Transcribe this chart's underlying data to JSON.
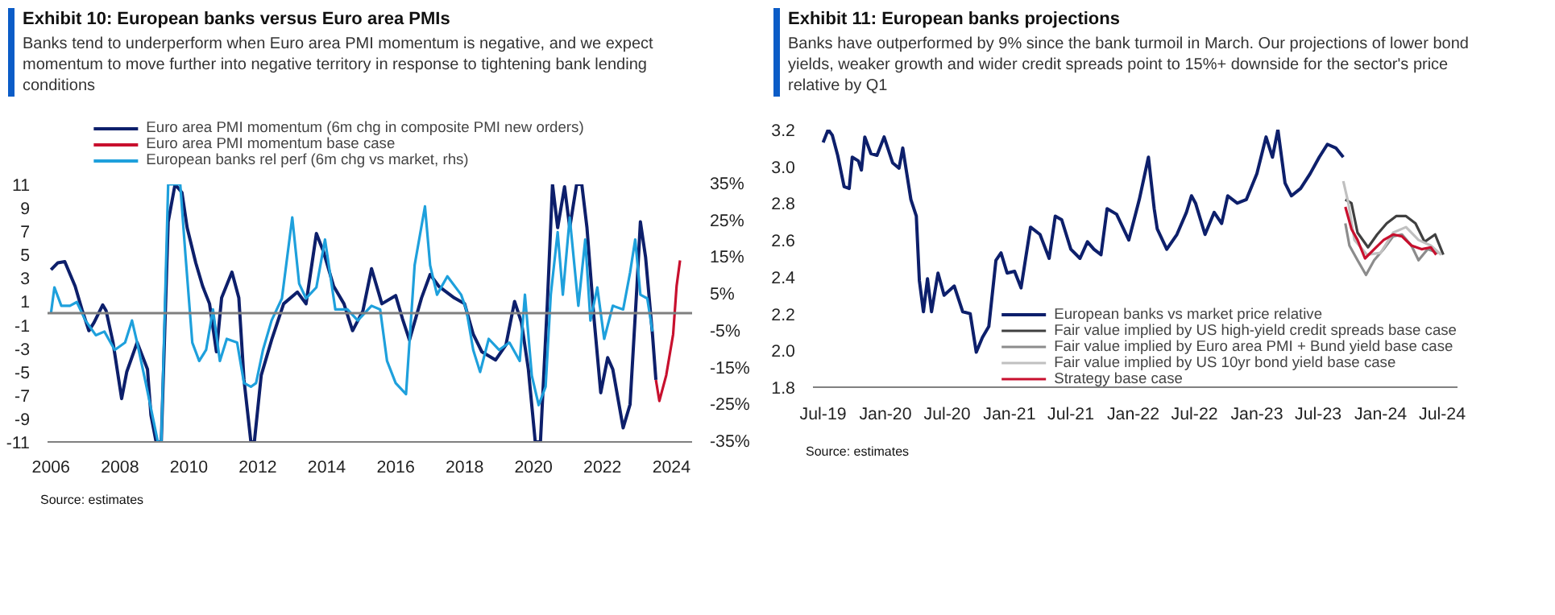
{
  "chart_data": [
    {
      "type": "line",
      "title": "Exhibit 10: European banks versus Euro area PMIs",
      "subtitle": "Banks tend to underperform when Euro area PMI momentum is negative, and we expect momentum to move further into negative territory in response to tightening bank lending conditions",
      "xlim": [
        2005.9,
        2024.6
      ],
      "xticks": [
        2006,
        2008,
        2010,
        2012,
        2014,
        2016,
        2018,
        2020,
        2022,
        2024
      ],
      "ylim": [
        -11,
        11
      ],
      "yticks": [
        -11,
        -9,
        -7,
        -5,
        -3,
        -1,
        1,
        3,
        5,
        7,
        9,
        11
      ],
      "y2lim": [
        -35,
        35
      ],
      "y2ticks": [
        {
          "value": -35,
          "label": "-35%"
        },
        {
          "value": -25,
          "label": "-25%"
        },
        {
          "value": -15,
          "label": "-15%"
        },
        {
          "value": -5,
          "label": "-5%"
        },
        {
          "value": 5,
          "label": "5%"
        },
        {
          "value": 15,
          "label": "15%"
        },
        {
          "value": 25,
          "label": "25%"
        },
        {
          "value": 35,
          "label": "35%"
        }
      ],
      "grid": false,
      "legend": "top",
      "ref_lines": [
        {
          "axis": "y",
          "value": 0,
          "color": "#808080"
        }
      ],
      "annotations": [
        "Source: estimates"
      ],
      "series": [
        {
          "name": "Euro area PMI momentum (6m chg in composite PMI new orders)",
          "color": "#0d1f6b",
          "x": [
            2006.0,
            2006.2,
            2006.4,
            2006.7,
            2006.9,
            2007.1,
            2007.25,
            2007.5,
            2007.6,
            2007.8,
            2008.05,
            2008.2,
            2008.5,
            2008.8,
            2008.9,
            2009.05,
            2009.2,
            2009.4,
            2009.6,
            2009.8,
            2009.95,
            2010.2,
            2010.4,
            2010.6,
            2010.8,
            2010.95,
            2011.25,
            2011.45,
            2011.6,
            2011.8,
            2011.9,
            2012.1,
            2012.4,
            2012.75,
            2013.15,
            2013.4,
            2013.7,
            2013.9,
            2014.2,
            2014.5,
            2014.75,
            2015.05,
            2015.3,
            2015.6,
            2016.0,
            2016.2,
            2016.4,
            2016.75,
            2017.0,
            2017.25,
            2017.7,
            2018.0,
            2018.25,
            2018.5,
            2018.9,
            2019.2,
            2019.45,
            2019.65,
            2019.85,
            2020.05,
            2020.2,
            2020.4,
            2020.55,
            2020.7,
            2020.9,
            2021.05,
            2021.25,
            2021.4,
            2021.55,
            2021.75,
            2021.95,
            2022.15,
            2022.3,
            2022.6,
            2022.8,
            2023.0,
            2023.1,
            2023.25,
            2023.45,
            2023.55
          ],
          "values": [
            3.7,
            4.3,
            4.4,
            2.3,
            0.3,
            -1.5,
            -0.8,
            0.7,
            0.2,
            -2.5,
            -7.3,
            -5,
            -2.5,
            -4.8,
            -8.7,
            -11,
            -11,
            7.8,
            11,
            10.3,
            7.3,
            4.3,
            2.3,
            0.8,
            -3.3,
            1.3,
            3.5,
            1.3,
            -5.7,
            -11,
            -11,
            -5.3,
            -2.3,
            0.8,
            1.8,
            0.8,
            6.8,
            5.3,
            2.3,
            0.8,
            -1.5,
            0.2,
            3.8,
            0.8,
            1.5,
            -0.5,
            -2.3,
            1.3,
            3.3,
            2.3,
            1.3,
            0.8,
            -1.8,
            -3.3,
            -4,
            -2.7,
            1,
            -0.8,
            -4.8,
            -11,
            -11,
            0.8,
            11,
            7.3,
            10.8,
            7.3,
            11,
            11,
            7.3,
            -0.3,
            -6.8,
            -3.8,
            -4.8,
            -9.8,
            -7.8,
            2.3,
            7.8,
            4.8,
            -1.8,
            -5.7
          ]
        },
        {
          "name": "Euro area PMI momentum base case",
          "color": "#c8102e",
          "x": [
            2023.55,
            2023.65,
            2023.85,
            2024.05,
            2024.15,
            2024.25
          ],
          "values": [
            -5.7,
            -7.5,
            -5.3,
            -1.8,
            2.3,
            4.5
          ]
        },
        {
          "name": "European banks rel perf (6m chg vs market, rhs)",
          "color": "#1ea0dc",
          "axis": "y2",
          "x": [
            2006.0,
            2006.1,
            2006.3,
            2006.55,
            2006.75,
            2007.0,
            2007.3,
            2007.55,
            2007.85,
            2008.15,
            2008.35,
            2008.5,
            2008.75,
            2009.1,
            2009.2,
            2009.4,
            2009.75,
            2009.9,
            2010.1,
            2010.3,
            2010.5,
            2010.7,
            2010.9,
            2011.1,
            2011.4,
            2011.6,
            2011.8,
            2011.95,
            2012.15,
            2012.4,
            2012.7,
            2013.0,
            2013.2,
            2013.4,
            2013.7,
            2013.95,
            2014.25,
            2014.6,
            2014.9,
            2015.3,
            2015.55,
            2015.75,
            2016.0,
            2016.3,
            2016.55,
            2016.85,
            2017.0,
            2017.2,
            2017.5,
            2017.9,
            2018.05,
            2018.25,
            2018.45,
            2018.7,
            2019.0,
            2019.3,
            2019.6,
            2019.75,
            2019.95,
            2020.15,
            2020.35,
            2020.5,
            2020.7,
            2020.85,
            2021.05,
            2021.3,
            2021.5,
            2021.65,
            2021.85,
            2022.05,
            2022.3,
            2022.6,
            2022.8,
            2022.95,
            2023.1,
            2023.3,
            2023.45
          ],
          "values": [
            0,
            7,
            2,
            2,
            3,
            -2,
            -6,
            -5,
            -10,
            -8,
            -2,
            -8,
            -19,
            -35,
            -35,
            35,
            35,
            16,
            -8,
            -13,
            -10,
            1,
            -13,
            -7,
            -8,
            -19,
            -20,
            -19,
            -10,
            -2,
            4,
            26,
            8,
            4,
            7,
            20,
            1,
            1,
            -2,
            2,
            1,
            -13,
            -19,
            -22,
            13,
            29,
            13,
            5,
            10,
            5,
            1,
            -10,
            -16,
            -7,
            -10,
            -8,
            -13,
            5,
            -17,
            -25,
            -20,
            5,
            22,
            5,
            26,
            2,
            20,
            -2,
            7,
            -7,
            2,
            1,
            11,
            20,
            5,
            4,
            -5
          ]
        }
      ]
    },
    {
      "type": "line",
      "title": "Exhibit 11: European banks projections",
      "subtitle": "Banks have outperformed by 9% since the bank turmoil in March. Our projections of lower bond yields, weaker growth and wider credit spreads point to 15%+ downside for the sector's price relative by Q1",
      "xlim": [
        "2019-06-01",
        "2024-08-15"
      ],
      "xticks": [
        {
          "value": "2019-07-01",
          "label": "Jul-19"
        },
        {
          "value": "2020-01-01",
          "label": "Jan-20"
        },
        {
          "value": "2020-07-01",
          "label": "Jul-20"
        },
        {
          "value": "2021-01-01",
          "label": "Jan-21"
        },
        {
          "value": "2021-07-01",
          "label": "Jul-21"
        },
        {
          "value": "2022-01-01",
          "label": "Jan-22"
        },
        {
          "value": "2022-07-01",
          "label": "Jul-22"
        },
        {
          "value": "2023-01-01",
          "label": "Jan-23"
        },
        {
          "value": "2023-07-01",
          "label": "Jul-23"
        },
        {
          "value": "2024-01-01",
          "label": "Jan-24"
        },
        {
          "value": "2024-07-01",
          "label": "Jul-24"
        }
      ],
      "ylim": [
        1.8,
        3.2
      ],
      "yticks": [
        1.8,
        {
          "value": 2.0,
          "label": "2.0"
        },
        2.2,
        2.4,
        2.6,
        2.8,
        {
          "value": 3.0,
          "label": "3.0"
        },
        3.2
      ],
      "grid": false,
      "legend": "bottom right",
      "annotations": [
        "Source: estimates"
      ],
      "series": [
        {
          "name": "European banks vs market price relative",
          "color": "#0d1f6b",
          "x": [
            "2019-07-01",
            "2019-07-16",
            "2019-07-28",
            "2019-08-13",
            "2019-09-01",
            "2019-09-16",
            "2019-09-25",
            "2019-10-13",
            "2019-10-22",
            "2019-11-01",
            "2019-11-19",
            "2019-12-07",
            "2019-12-28",
            "2020-01-22",
            "2020-02-10",
            "2020-02-21",
            "2020-03-04",
            "2020-03-16",
            "2020-04-01",
            "2020-04-10",
            "2020-04-22",
            "2020-05-04",
            "2020-05-16",
            "2020-06-04",
            "2020-06-22",
            "2020-07-22",
            "2020-08-16",
            "2020-09-07",
            "2020-09-25",
            "2020-10-13",
            "2020-11-01",
            "2020-11-22",
            "2020-12-07",
            "2020-12-25",
            "2021-01-16",
            "2021-02-04",
            "2021-03-04",
            "2021-04-01",
            "2021-04-28",
            "2021-05-16",
            "2021-06-04",
            "2021-07-01",
            "2021-07-28",
            "2021-08-19",
            "2021-09-07",
            "2021-09-28",
            "2021-10-16",
            "2021-11-13",
            "2021-12-19",
            "2022-01-19",
            "2022-02-15",
            "2022-03-04",
            "2022-03-13",
            "2022-04-10",
            "2022-05-10",
            "2022-06-07",
            "2022-06-22",
            "2022-07-04",
            "2022-08-01",
            "2022-08-28",
            "2022-09-19",
            "2022-10-07",
            "2022-11-04",
            "2022-12-01",
            "2023-01-01",
            "2023-01-28",
            "2023-02-16",
            "2023-03-04",
            "2023-03-25",
            "2023-04-13",
            "2023-05-10",
            "2023-06-07",
            "2023-07-04",
            "2023-07-28",
            "2023-08-22",
            "2023-09-13"
          ],
          "values": [
            3.13,
            3.2,
            3.17,
            3.06,
            2.89,
            2.88,
            3.05,
            3.03,
            2.98,
            3.16,
            3.07,
            3.06,
            3.16,
            3.02,
            2.99,
            3.1,
            2.96,
            2.82,
            2.73,
            2.38,
            2.21,
            2.39,
            2.21,
            2.42,
            2.3,
            2.35,
            2.21,
            2.2,
            1.99,
            2.07,
            2.13,
            2.49,
            2.53,
            2.42,
            2.43,
            2.34,
            2.67,
            2.63,
            2.5,
            2.73,
            2.71,
            2.55,
            2.5,
            2.59,
            2.55,
            2.52,
            2.77,
            2.74,
            2.6,
            2.82,
            3.05,
            2.77,
            2.66,
            2.55,
            2.63,
            2.75,
            2.84,
            2.8,
            2.63,
            2.75,
            2.69,
            2.84,
            2.8,
            2.82,
            2.96,
            3.16,
            3.05,
            3.2,
            2.91,
            2.84,
            2.88,
            2.96,
            3.05,
            3.12,
            3.1,
            3.05
          ]
        },
        {
          "name": "Fair value implied by US high-yield credit spreads base case",
          "color": "#404040",
          "x": [
            "2023-09-19",
            "2023-10-07",
            "2023-10-25",
            "2023-11-25",
            "2023-12-22",
            "2024-01-19",
            "2024-02-16",
            "2024-03-16",
            "2024-04-13",
            "2024-05-10",
            "2024-06-10",
            "2024-07-04"
          ],
          "values": [
            2.82,
            2.8,
            2.64,
            2.56,
            2.63,
            2.69,
            2.73,
            2.73,
            2.69,
            2.59,
            2.63,
            2.52
          ]
        },
        {
          "name": "Fair value implied by Euro area PMI + Bund yield base case",
          "color": "#8c8c8c",
          "x": [
            "2023-09-19",
            "2023-10-01",
            "2023-10-25",
            "2023-11-19",
            "2023-12-13",
            "2024-01-10",
            "2024-02-07",
            "2024-03-04",
            "2024-04-01",
            "2024-04-22",
            "2024-05-19",
            "2024-06-19"
          ],
          "values": [
            2.69,
            2.57,
            2.49,
            2.41,
            2.49,
            2.55,
            2.62,
            2.63,
            2.57,
            2.49,
            2.55,
            2.53
          ]
        },
        {
          "name": "Fair value implied by US 10yr bond yield base case",
          "color": "#c0c0c0",
          "x": [
            "2023-09-13",
            "2023-09-28",
            "2023-10-16",
            "2023-11-22",
            "2024-01-01",
            "2024-02-07",
            "2024-03-16",
            "2024-04-22",
            "2024-05-28",
            "2024-06-28"
          ],
          "values": [
            2.92,
            2.8,
            2.6,
            2.52,
            2.53,
            2.64,
            2.67,
            2.6,
            2.57,
            2.52
          ]
        },
        {
          "name": "Strategy base case",
          "color": "#c8102e",
          "x": [
            "2023-09-19",
            "2023-10-07",
            "2023-10-25",
            "2023-11-16",
            "2023-12-13",
            "2024-01-10",
            "2024-02-07",
            "2024-03-04",
            "2024-04-01",
            "2024-05-01",
            "2024-05-28",
            "2024-06-13"
          ],
          "values": [
            2.78,
            2.66,
            2.6,
            2.5,
            2.55,
            2.6,
            2.63,
            2.62,
            2.57,
            2.55,
            2.56,
            2.52
          ]
        }
      ]
    }
  ]
}
